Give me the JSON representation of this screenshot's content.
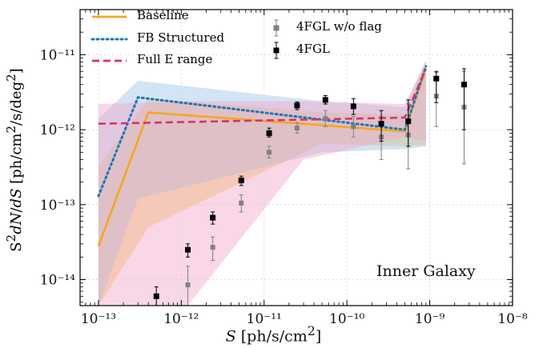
{
  "chart_data": {
    "type": "line",
    "xscale": "log",
    "yscale": "log",
    "xlim": [
      6e-14,
      1e-08
    ],
    "ylim": [
      4.5e-15,
      4e-11
    ],
    "xlabel": "S [ph/s/cm²]",
    "ylabel": "S²dN/dS [ph/cm²/s/deg²]",
    "annotation": "Inner Galaxy",
    "x_ticks": [
      1e-13,
      1e-12,
      1e-11,
      1e-10,
      1e-09,
      1e-08
    ],
    "x_tick_labels": [
      "10⁻¹³",
      "10⁻¹²",
      "10⁻¹¹",
      "10⁻¹⁰",
      "10⁻⁹",
      "10⁻⁸"
    ],
    "y_ticks": [
      1e-14,
      1e-13,
      1e-12,
      1e-11
    ],
    "y_tick_labels": [
      "10⁻¹⁴",
      "10⁻¹³",
      "10⁻¹²",
      "10⁻¹¹"
    ],
    "grid": true,
    "legend_position": "top-left",
    "series": [
      {
        "name": "Baseline",
        "style": "solid",
        "color": "#f5a623",
        "x": [
          1e-13,
          4e-13,
          5e-10,
          9e-10
        ],
        "y": [
          2.8e-14,
          1.7e-12,
          9.5e-13,
          6.5e-12
        ],
        "band_lower": [
          4.5e-15,
          5e-14,
          6.5e-13,
          6e-13,
          6.2e-13
        ],
        "band_upper": [
          3.2e-13,
          2.6e-12,
          1.7e-12,
          1.6e-12,
          8e-12
        ],
        "band_x": [
          1e-13,
          4e-13,
          5e-11,
          5e-10,
          9e-10
        ],
        "band_color": "#f5c040"
      },
      {
        "name": "FB Structured",
        "style": "dotted",
        "color": "#1f77b4",
        "x": [
          1e-13,
          3e-13,
          5e-10,
          9e-10
        ],
        "y": [
          1.3e-13,
          2.7e-12,
          1e-12,
          7e-12
        ],
        "band_lower": [
          4.5e-15,
          1.2e-13,
          5e-13,
          5.5e-13,
          6e-13
        ],
        "band_upper": [
          1.4e-12,
          4.5e-12,
          2.4e-12,
          2e-12,
          8.5e-12
        ],
        "band_x": [
          1e-13,
          3e-13,
          5e-11,
          5e-10,
          9e-10
        ],
        "band_color": "#9ec3e6"
      },
      {
        "name": "Full E range",
        "style": "dashed",
        "color": "#d6336c",
        "x": [
          1e-13,
          5e-10,
          9e-10
        ],
        "y": [
          1.2e-12,
          1.45e-12,
          6.5e-12
        ],
        "band_lower": [
          4.5e-15,
          4.5e-15,
          4e-13,
          8e-13,
          7e-13
        ],
        "band_upper": [
          2.2e-12,
          2.4e-12,
          2.4e-12,
          2.2e-12,
          8e-12
        ],
        "band_x": [
          1e-13,
          1.2e-12,
          3e-11,
          5e-10,
          9e-10
        ],
        "band_color": "#f2a6c8"
      },
      {
        "name": "4FGL w/o flag",
        "style": "marker",
        "color": "#808080",
        "x": [
          1.2e-12,
          2.4e-12,
          5.3e-12,
          1.15e-11,
          2.5e-11,
          5.5e-11,
          1.2e-10,
          2.6e-10,
          5.5e-10,
          1.2e-09,
          2.6e-09
        ],
        "y": [
          8.5e-15,
          2.7e-14,
          1.05e-13,
          5e-13,
          1.05e-12,
          1.4e-12,
          1.1e-12,
          8e-13,
          8.5e-13,
          2.8e-12,
          2e-12
        ],
        "err_low": [
          4.5e-15,
          1.8e-14,
          8e-14,
          4.2e-13,
          9e-13,
          1.1e-12,
          8e-13,
          4e-13,
          3e-13,
          1.1e-12,
          3.5e-13
        ],
        "err_high": [
          1.5e-14,
          3.7e-14,
          1.35e-13,
          6e-13,
          1.25e-12,
          1.8e-12,
          1.5e-12,
          1.5e-12,
          2.2e-12,
          5.8e-12,
          6e-12
        ]
      },
      {
        "name": "4FGL",
        "style": "marker",
        "color": "#000000",
        "x": [
          5e-13,
          1.2e-12,
          2.4e-12,
          5.3e-12,
          1.15e-11,
          2.5e-11,
          5.5e-11,
          1.2e-10,
          2.6e-10,
          5.5e-10,
          1.2e-09,
          2.6e-09
        ],
        "y": [
          6e-15,
          2.5e-14,
          6.7e-14,
          2.1e-13,
          9e-13,
          2.1e-12,
          2.5e-12,
          2.05e-12,
          1.2e-12,
          1.3e-12,
          4.8e-12,
          4e-12
        ],
        "err_low": [
          4.5e-15,
          2e-14,
          5.5e-14,
          1.8e-13,
          8e-13,
          1.85e-12,
          2.2e-12,
          1.6e-12,
          7e-13,
          6e-13,
          2.3e-12,
          1e-12
        ],
        "err_high": [
          8e-15,
          3e-14,
          8e-14,
          2.4e-13,
          1.05e-12,
          2.35e-12,
          2.85e-12,
          2.6e-12,
          1.8e-12,
          2.5e-12,
          6e-12,
          6.5e-12
        ]
      }
    ]
  }
}
